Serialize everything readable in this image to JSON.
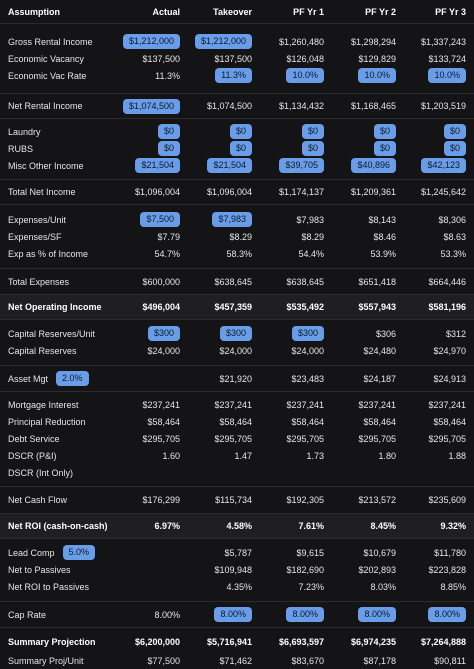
{
  "header": {
    "label": "Assumption",
    "columns": [
      "Actual",
      "Takeover",
      "PF Yr 1",
      "PF Yr 2",
      "PF Yr 3"
    ]
  },
  "rows": {
    "gross_rental_income": {
      "label": "Gross Rental Income",
      "values": [
        "$1,212,000",
        "$1,212,000",
        "$1,260,480",
        "$1,298,294",
        "$1,337,243"
      ]
    },
    "economic_vacancy": {
      "label": "Economic Vacancy",
      "values": [
        "$137,500",
        "$137,500",
        "$126,048",
        "$129,829",
        "$133,724"
      ]
    },
    "economic_vac_rate": {
      "label": "Economic Vac Rate",
      "values": [
        "11.3%",
        "11.3%",
        "10.0%",
        "10.0%",
        "10.0%"
      ]
    },
    "net_rental_income": {
      "label": "Net Rental Income",
      "values": [
        "$1,074,500",
        "$1,074,500",
        "$1,134,432",
        "$1,168,465",
        "$1,203,519"
      ]
    },
    "laundry": {
      "label": "Laundry",
      "values": [
        "$0",
        "$0",
        "$0",
        "$0",
        "$0"
      ]
    },
    "rubs": {
      "label": "RUBS",
      "values": [
        "$0",
        "$0",
        "$0",
        "$0",
        "$0"
      ]
    },
    "misc_other_income": {
      "label": "Misc Other Income",
      "values": [
        "$21,504",
        "$21,504",
        "$39,705",
        "$40,896",
        "$42,123"
      ]
    },
    "total_net_income": {
      "label": "Total Net Income",
      "values": [
        "$1,096,004",
        "$1,096,004",
        "$1,174,137",
        "$1,209,361",
        "$1,245,642"
      ]
    },
    "expenses_unit": {
      "label": "Expenses/Unit",
      "values": [
        "$7,500",
        "$7,983",
        "$7,983",
        "$8,143",
        "$8,306"
      ]
    },
    "expenses_sf": {
      "label": "Expenses/SF",
      "values": [
        "$7.79",
        "$8.29",
        "$8.29",
        "$8.46",
        "$8.63"
      ]
    },
    "exp_pct_income": {
      "label": "Exp as % of Income",
      "values": [
        "54.7%",
        "58.3%",
        "54.4%",
        "53.9%",
        "53.3%"
      ]
    },
    "total_expenses": {
      "label": "Total Expenses",
      "values": [
        "$600,000",
        "$638,645",
        "$638,645",
        "$651,418",
        "$664,446"
      ]
    },
    "noi": {
      "label": "Net Operating Income",
      "values": [
        "$496,004",
        "$457,359",
        "$535,492",
        "$557,943",
        "$581,196"
      ]
    },
    "cap_reserves_unit": {
      "label": "Capital Reserves/Unit",
      "values": [
        "$300",
        "$300",
        "$300",
        "$306",
        "$312"
      ]
    },
    "cap_reserves": {
      "label": "Capital Reserves",
      "values": [
        "$24,000",
        "$24,000",
        "$24,000",
        "$24,480",
        "$24,970"
      ]
    },
    "asset_mgt": {
      "label": "Asset Mgt",
      "pill": "2.0%",
      "values": [
        "",
        "$21,920",
        "$23,483",
        "$24,187",
        "$24,913"
      ]
    },
    "mortgage_interest": {
      "label": "Mortgage Interest",
      "values": [
        "$237,241",
        "$237,241",
        "$237,241",
        "$237,241",
        "$237,241"
      ]
    },
    "principal_reduction": {
      "label": "Principal Reduction",
      "values": [
        "$58,464",
        "$58,464",
        "$58,464",
        "$58,464",
        "$58,464"
      ]
    },
    "debt_service": {
      "label": "Debt Service",
      "values": [
        "$295,705",
        "$295,705",
        "$295,705",
        "$295,705",
        "$295,705"
      ]
    },
    "dscr_pi": {
      "label": "DSCR (P&I)",
      "values": [
        "1.60",
        "1.47",
        "1.73",
        "1.80",
        "1.88"
      ]
    },
    "dscr_int": {
      "label": "DSCR (Int Only)",
      "values": [
        "",
        "",
        "",
        "",
        ""
      ]
    },
    "net_cash_flow": {
      "label": "Net Cash Flow",
      "values": [
        "$176,299",
        "$115,734",
        "$192,305",
        "$213,572",
        "$235,609"
      ]
    },
    "net_roi": {
      "label": "Net ROI (cash-on-cash)",
      "values": [
        "6.97%",
        "4.58%",
        "7.61%",
        "8.45%",
        "9.32%"
      ]
    },
    "lead_comp": {
      "label": "Lead Comp",
      "pill": "5.0%",
      "values": [
        "",
        "$5,787",
        "$9,615",
        "$10,679",
        "$11,780"
      ]
    },
    "net_to_passives": {
      "label": "Net to Passives",
      "values": [
        "",
        "$109,948",
        "$182,690",
        "$202,893",
        "$223,828"
      ]
    },
    "net_roi_passives": {
      "label": "Net ROI to Passives",
      "values": [
        "",
        "4.35%",
        "7.23%",
        "8.03%",
        "8.85%"
      ]
    },
    "cap_rate": {
      "label": "Cap Rate",
      "values": [
        "8.00%",
        "8.00%",
        "8.00%",
        "8.00%",
        "8.00%"
      ]
    },
    "summary_projection": {
      "label": "Summary Projection",
      "values": [
        "$6,200,000",
        "$5,716,941",
        "$6,693,597",
        "$6,974,235",
        "$7,264,888"
      ]
    },
    "summary_proj_unit": {
      "label": "Summary Proj/Unit",
      "values": [
        "$77,500",
        "$71,462",
        "$83,670",
        "$87,178",
        "$90,811"
      ]
    }
  },
  "colors": {
    "background": "#141416",
    "band": "#1f1f22",
    "pill": "#6a9de8",
    "text": "#e6e6e6"
  }
}
